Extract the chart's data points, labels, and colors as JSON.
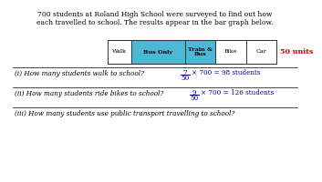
{
  "title_text": "700 students at Roland High School were surveyed to find out how\neach travelled to school. The results appear in the bar graph below.",
  "segments": [
    "Walk",
    "Bus Only",
    "Train &\nBus",
    "Bike",
    "Car"
  ],
  "widths": [
    7,
    16,
    9,
    9,
    9
  ],
  "total_units": 50,
  "segment_colors": [
    "#ffffff",
    "#4db8d4",
    "#4db8d4",
    "#ffffff",
    "#ffffff"
  ],
  "bar_outline": "#333333",
  "bar_bg": "#cce8f0",
  "units_label": "50 units",
  "units_color": "#cc0000",
  "q1_text": "(i) How many students walk to school?",
  "q1_num": "7",
  "q1_den": "50",
  "q1_ans": "× 700 = 98 students",
  "q2_text": "(ii) How many students ride bikes to school?",
  "q2_num": "9",
  "q2_den": "50",
  "q2_ans": "× 700 = 126 students",
  "q3_text": "(iii) How many students use public transport travelling to school?",
  "answer_color": "#000099",
  "bg_color": "#ffffff",
  "title_fontsize": 5.5,
  "q_fontsize": 5.2,
  "ans_fontsize": 5.2
}
